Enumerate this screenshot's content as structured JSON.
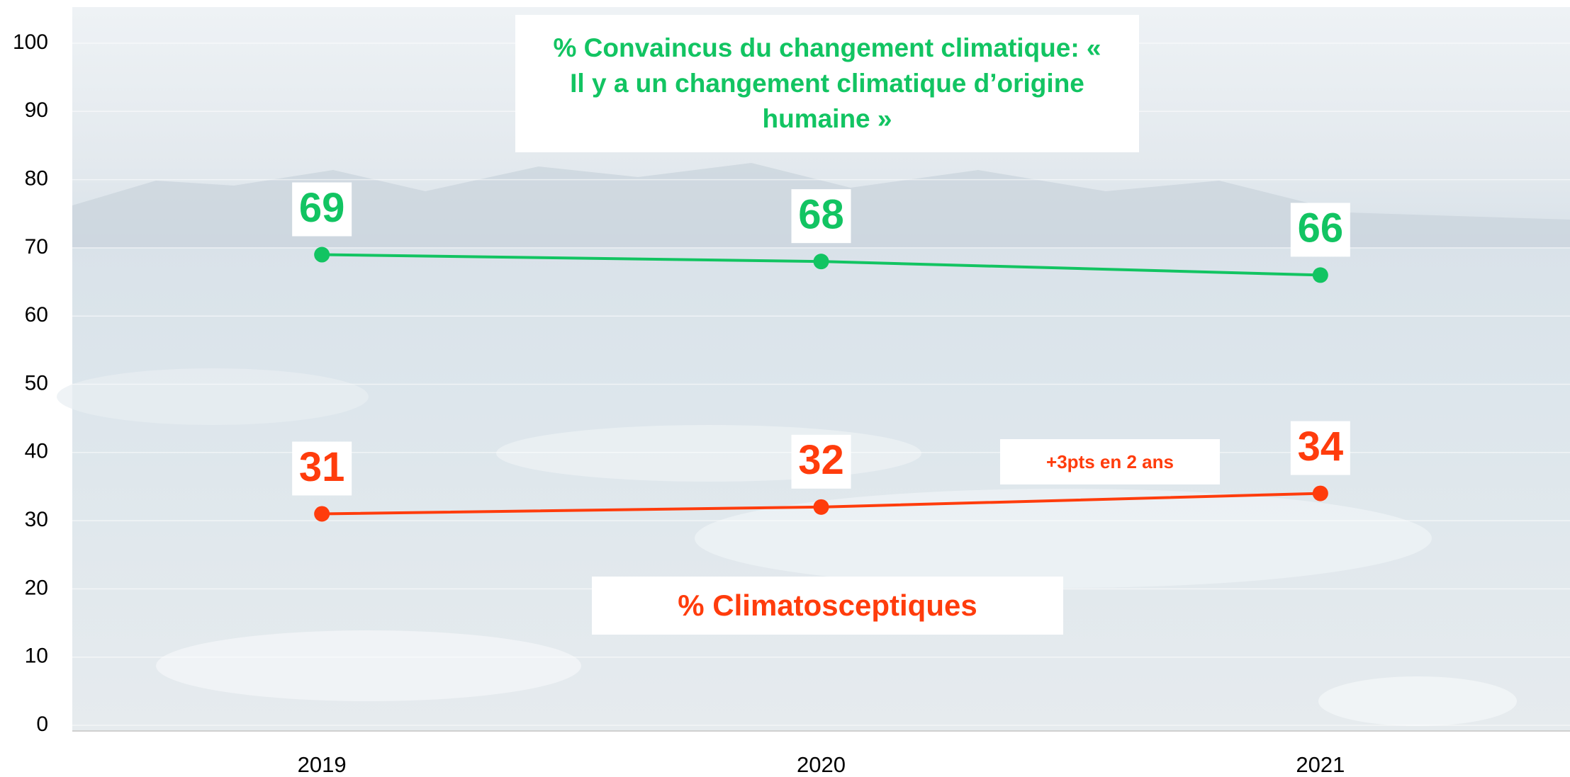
{
  "chart_data": {
    "type": "line",
    "categories": [
      "2019",
      "2020",
      "2021"
    ],
    "series": [
      {
        "name": "% Convaincus du changement climatique: « Il y a un changement climatique d’origine humaine »",
        "color": "#12c462",
        "values": [
          69,
          68,
          66
        ]
      },
      {
        "name": "% Climatosceptiques",
        "color": "#ff3c0c",
        "values": [
          31,
          32,
          34
        ]
      }
    ],
    "annotations": [
      "+3pts en 2 ans"
    ],
    "ylim": [
      0,
      100
    ],
    "yticks": [
      0,
      10,
      20,
      30,
      40,
      50,
      60,
      70,
      80,
      90,
      100
    ],
    "grid": true
  }
}
